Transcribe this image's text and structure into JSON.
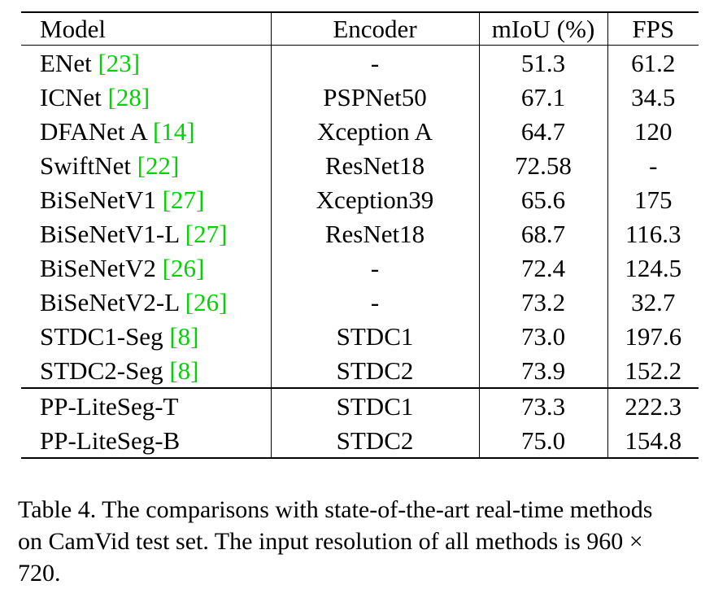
{
  "table": {
    "headers": [
      "Model",
      "Encoder",
      "mIoU (%)",
      "FPS"
    ],
    "rows": [
      {
        "model": "ENet",
        "ref": "[23]",
        "encoder": "-",
        "miou": "51.3",
        "fps": "61.2"
      },
      {
        "model": "ICNet",
        "ref": "[28]",
        "encoder": "PSPNet50",
        "miou": "67.1",
        "fps": "34.5"
      },
      {
        "model": "DFANet A",
        "ref": "[14]",
        "encoder": "Xception A",
        "miou": "64.7",
        "fps": "120"
      },
      {
        "model": "SwiftNet",
        "ref": "[22]",
        "encoder": "ResNet18",
        "miou": "72.58",
        "fps": "-"
      },
      {
        "model": "BiSeNetV1",
        "ref": "[27]",
        "encoder": "Xception39",
        "miou": "65.6",
        "fps": "175"
      },
      {
        "model": "BiSeNetV1-L",
        "ref": "[27]",
        "encoder": "ResNet18",
        "miou": "68.7",
        "fps": "116.3"
      },
      {
        "model": "BiSeNetV2",
        "ref": "[26]",
        "encoder": "-",
        "miou": "72.4",
        "fps": "124.5"
      },
      {
        "model": "BiSeNetV2-L",
        "ref": "[26]",
        "encoder": "-",
        "miou": "73.2",
        "fps": "32.7"
      },
      {
        "model": "STDC1-Seg",
        "ref": "[8]",
        "encoder": "STDC1",
        "miou": "73.0",
        "fps": "197.6"
      },
      {
        "model": "STDC2-Seg",
        "ref": "[8]",
        "encoder": "STDC2",
        "miou": "73.9",
        "fps": "152.2"
      },
      {
        "model": "PP-LiteSeg-T",
        "ref": "",
        "encoder": "STDC1",
        "miou": "73.3",
        "fps": "222.3"
      },
      {
        "model": "PP-LiteSeg-B",
        "ref": "",
        "encoder": "STDC2",
        "miou": "75.0",
        "fps": "154.8"
      }
    ]
  },
  "caption": {
    "line1": "Table 4. The comparisons with state-of-the-art real-time methods",
    "line2": "on CamVid test set. The input resolution of all methods is 960 × ",
    "line3": "720."
  },
  "colors": {
    "reference_link": "#00d400",
    "text": "#000000",
    "background": "#ffffff"
  }
}
